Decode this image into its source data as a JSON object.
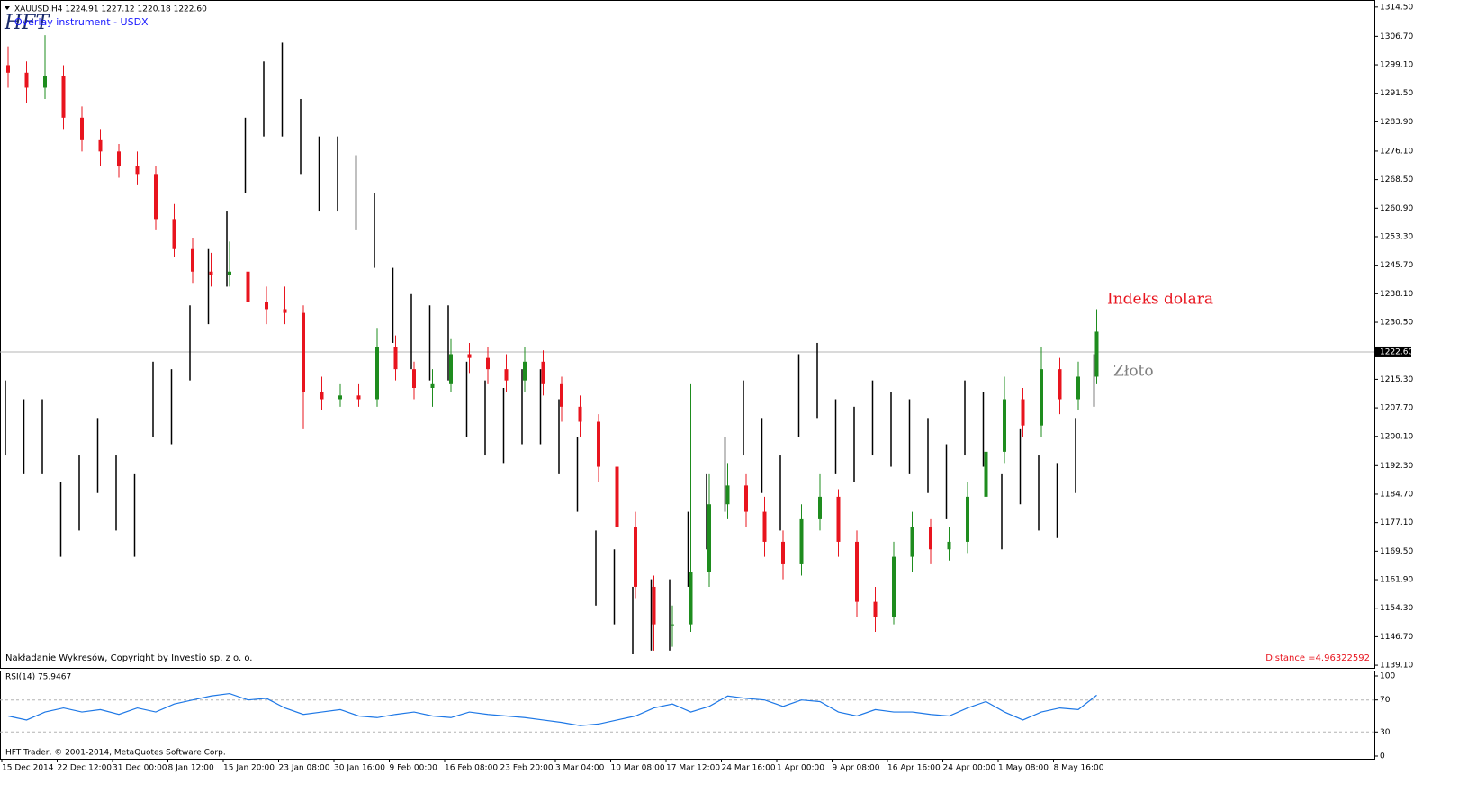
{
  "header": {
    "symbol_line": "XAUUSD,H4  1224.91 1227.12 1220.18 1222.60",
    "overlay": "Overlay instrument - USDX",
    "logo": "HFT",
    "copyright": "Nakładanie Wykresów, Copyright by Investio sp. z o. o.",
    "distance": "Distance =4.96322592",
    "footer": "HFT Trader, © 2001-2014, MetaQuotes Software Corp."
  },
  "chart_data": [
    {
      "type": "candlestick",
      "categories": [
        "15 Dec 2014",
        null,
        null,
        "22 Dec 12:00",
        null,
        null,
        "31 Dec 00:00",
        null,
        null,
        "8 Jan 12:00",
        null,
        null,
        "15 Jan 20:00",
        null,
        null,
        "23 Jan 08:00",
        null,
        null,
        "30 Jan 16:00",
        null,
        null,
        "9 Feb 00:00",
        null,
        null,
        "16 Feb 08:00",
        null,
        null,
        "23 Feb 20:00",
        null,
        null,
        "3 Mar 04:00",
        null,
        null,
        "10 Mar 08:00",
        null,
        null,
        "17 Mar 12:00",
        null,
        null,
        "24 Mar 16:00",
        null,
        null,
        "1 Apr 00:00",
        null,
        null,
        "9 Apr 08:00",
        null,
        null,
        "16 Apr 16:00",
        null,
        null,
        "24 Apr 00:00",
        null,
        null,
        "1 May 08:00",
        null,
        null,
        "8 May 16:00",
        null,
        null
      ],
      "series": [
        {
          "name": "Indeks dolara",
          "color": "#e8141e",
          "up_color": "#1e8c1e",
          "down_color": "#e8141e",
          "open": [
            1299,
            1297,
            1293,
            1296,
            1285,
            1279,
            1276,
            1272,
            1270,
            1258,
            1250,
            1244,
            1243,
            1244,
            1236,
            1234,
            1233,
            1212,
            1210,
            1211,
            1210,
            1224,
            1218,
            1213,
            1214,
            1222,
            1221,
            1218,
            1215,
            1220,
            1214,
            1208,
            1204,
            1192,
            1176,
            1160,
            1150,
            1150,
            1164,
            1182,
            1187,
            1180,
            1172,
            1166,
            1178,
            1184,
            1172,
            1156,
            1152,
            1168,
            1176,
            1170,
            1172,
            1184,
            1196,
            1210,
            1203,
            1218,
            1210,
            1216
          ],
          "high": [
            1304,
            1300,
            1307,
            1299,
            1288,
            1282,
            1278,
            1276,
            1272,
            1262,
            1253,
            1249,
            1252,
            1247,
            1240,
            1240,
            1235,
            1216,
            1214,
            1214,
            1229,
            1227,
            1220,
            1218,
            1226,
            1225,
            1224,
            1222,
            1224,
            1223,
            1216,
            1211,
            1206,
            1195,
            1180,
            1163,
            1155,
            1214,
            1190,
            1193,
            1190,
            1184,
            1175,
            1182,
            1190,
            1186,
            1175,
            1160,
            1172,
            1180,
            1178,
            1176,
            1188,
            1202,
            1216,
            1213,
            1224,
            1221,
            1220,
            1234
          ],
          "low": [
            1293,
            1289,
            1290,
            1282,
            1276,
            1272,
            1269,
            1267,
            1255,
            1248,
            1241,
            1240,
            1240,
            1232,
            1230,
            1230,
            1202,
            1207,
            1208,
            1208,
            1208,
            1215,
            1210,
            1208,
            1212,
            1217,
            1214,
            1212,
            1212,
            1211,
            1204,
            1200,
            1188,
            1172,
            1157,
            1143,
            1144,
            1148,
            1160,
            1178,
            1176,
            1168,
            1162,
            1163,
            1175,
            1168,
            1152,
            1148,
            1150,
            1164,
            1166,
            1167,
            1169,
            1181,
            1193,
            1200,
            1200,
            1206,
            1207,
            1214
          ],
          "close": [
            1297,
            1293,
            1296,
            1285,
            1279,
            1276,
            1272,
            1270,
            1258,
            1250,
            1244,
            1243,
            1244,
            1236,
            1234,
            1233,
            1212,
            1210,
            1211,
            1210,
            1224,
            1218,
            1213,
            1214,
            1222,
            1221,
            1218,
            1215,
            1220,
            1214,
            1208,
            1204,
            1192,
            1176,
            1160,
            1150,
            1150,
            1164,
            1182,
            1187,
            1180,
            1172,
            1166,
            1178,
            1184,
            1172,
            1156,
            1152,
            1168,
            1176,
            1170,
            1172,
            1184,
            1196,
            1210,
            1203,
            1218,
            1210,
            1216,
            1228
          ]
        },
        {
          "name": "Złoto",
          "color": "#7f7f7f",
          "bar_color": "#000000",
          "high": [
            1215,
            1210,
            1210,
            1188,
            1195,
            1205,
            1195,
            1190,
            1220,
            1218,
            1235,
            1250,
            1260,
            1285,
            1300,
            1305,
            1290,
            1280,
            1280,
            1275,
            1265,
            1245,
            1238,
            1235,
            1235,
            1220,
            1215,
            1213,
            1218,
            1218,
            1210,
            1200,
            1175,
            1170,
            1160,
            1162,
            1162,
            1180,
            1190,
            1200,
            1215,
            1205,
            1195,
            1222,
            1225,
            1210,
            1208,
            1215,
            1212,
            1210,
            1205,
            1198,
            1215,
            1212,
            1190,
            1202,
            1195,
            1193,
            1205,
            1222
          ],
          "low": [
            1195,
            1190,
            1190,
            1168,
            1175,
            1185,
            1175,
            1168,
            1200,
            1198,
            1215,
            1230,
            1240,
            1265,
            1280,
            1280,
            1270,
            1260,
            1260,
            1255,
            1245,
            1225,
            1218,
            1215,
            1215,
            1200,
            1195,
            1193,
            1198,
            1198,
            1190,
            1180,
            1155,
            1150,
            1142,
            1143,
            1143,
            1160,
            1170,
            1180,
            1195,
            1185,
            1175,
            1200,
            1205,
            1190,
            1188,
            1195,
            1192,
            1190,
            1185,
            1178,
            1195,
            1192,
            1170,
            1182,
            1175,
            1173,
            1185,
            1208
          ]
        }
      ],
      "ylim": [
        1138.4,
        1315.9
      ],
      "yticks": [
        {
          "value": 1314.5,
          "label": "1314.50"
        },
        {
          "value": 1306.7,
          "label": "1306.70"
        },
        {
          "value": 1299.1,
          "label": "1299.10"
        },
        {
          "value": 1291.5,
          "label": "1291.50"
        },
        {
          "value": 1283.9,
          "label": "1283.90"
        },
        {
          "value": 1276.1,
          "label": "1276.10"
        },
        {
          "value": 1268.5,
          "label": "1268.50"
        },
        {
          "value": 1260.9,
          "label": "1260.90"
        },
        {
          "value": 1253.3,
          "label": "1253.30"
        },
        {
          "value": 1245.7,
          "label": "1245.70"
        },
        {
          "value": 1238.1,
          "label": "1238.10"
        },
        {
          "value": 1230.5,
          "label": "1230.50"
        },
        {
          "value": 1215.3,
          "label": "1215.30"
        },
        {
          "value": 1207.7,
          "label": "1207.70"
        },
        {
          "value": 1200.1,
          "label": "1200.10"
        },
        {
          "value": 1192.3,
          "label": "1192.30"
        },
        {
          "value": 1184.7,
          "label": "1184.70"
        },
        {
          "value": 1177.1,
          "label": "1177.10"
        },
        {
          "value": 1169.5,
          "label": "1169.50"
        },
        {
          "value": 1161.9,
          "label": "1161.90"
        },
        {
          "value": 1154.3,
          "label": "1154.30"
        },
        {
          "value": 1146.7,
          "label": "1146.70"
        },
        {
          "value": 1139.1,
          "label": "1139.10"
        }
      ],
      "current_price": {
        "value": 1222.6,
        "label": "1222.60"
      }
    },
    {
      "type": "line",
      "title": "RSI(14) 75.9467",
      "color": "#1e78e6",
      "values": [
        50,
        45,
        55,
        60,
        55,
        58,
        52,
        60,
        55,
        65,
        70,
        75,
        78,
        70,
        72,
        60,
        52,
        55,
        58,
        50,
        48,
        52,
        55,
        50,
        48,
        55,
        52,
        50,
        48,
        45,
        42,
        38,
        40,
        45,
        50,
        60,
        65,
        55,
        62,
        75,
        72,
        70,
        62,
        70,
        68,
        55,
        50,
        58,
        55,
        55,
        52,
        50,
        60,
        68,
        55,
        45,
        55,
        60,
        58,
        76
      ],
      "ylim": [
        0,
        100
      ],
      "yticks": [
        100,
        70,
        30,
        0
      ],
      "dashed_levels": [
        70,
        30
      ]
    }
  ]
}
